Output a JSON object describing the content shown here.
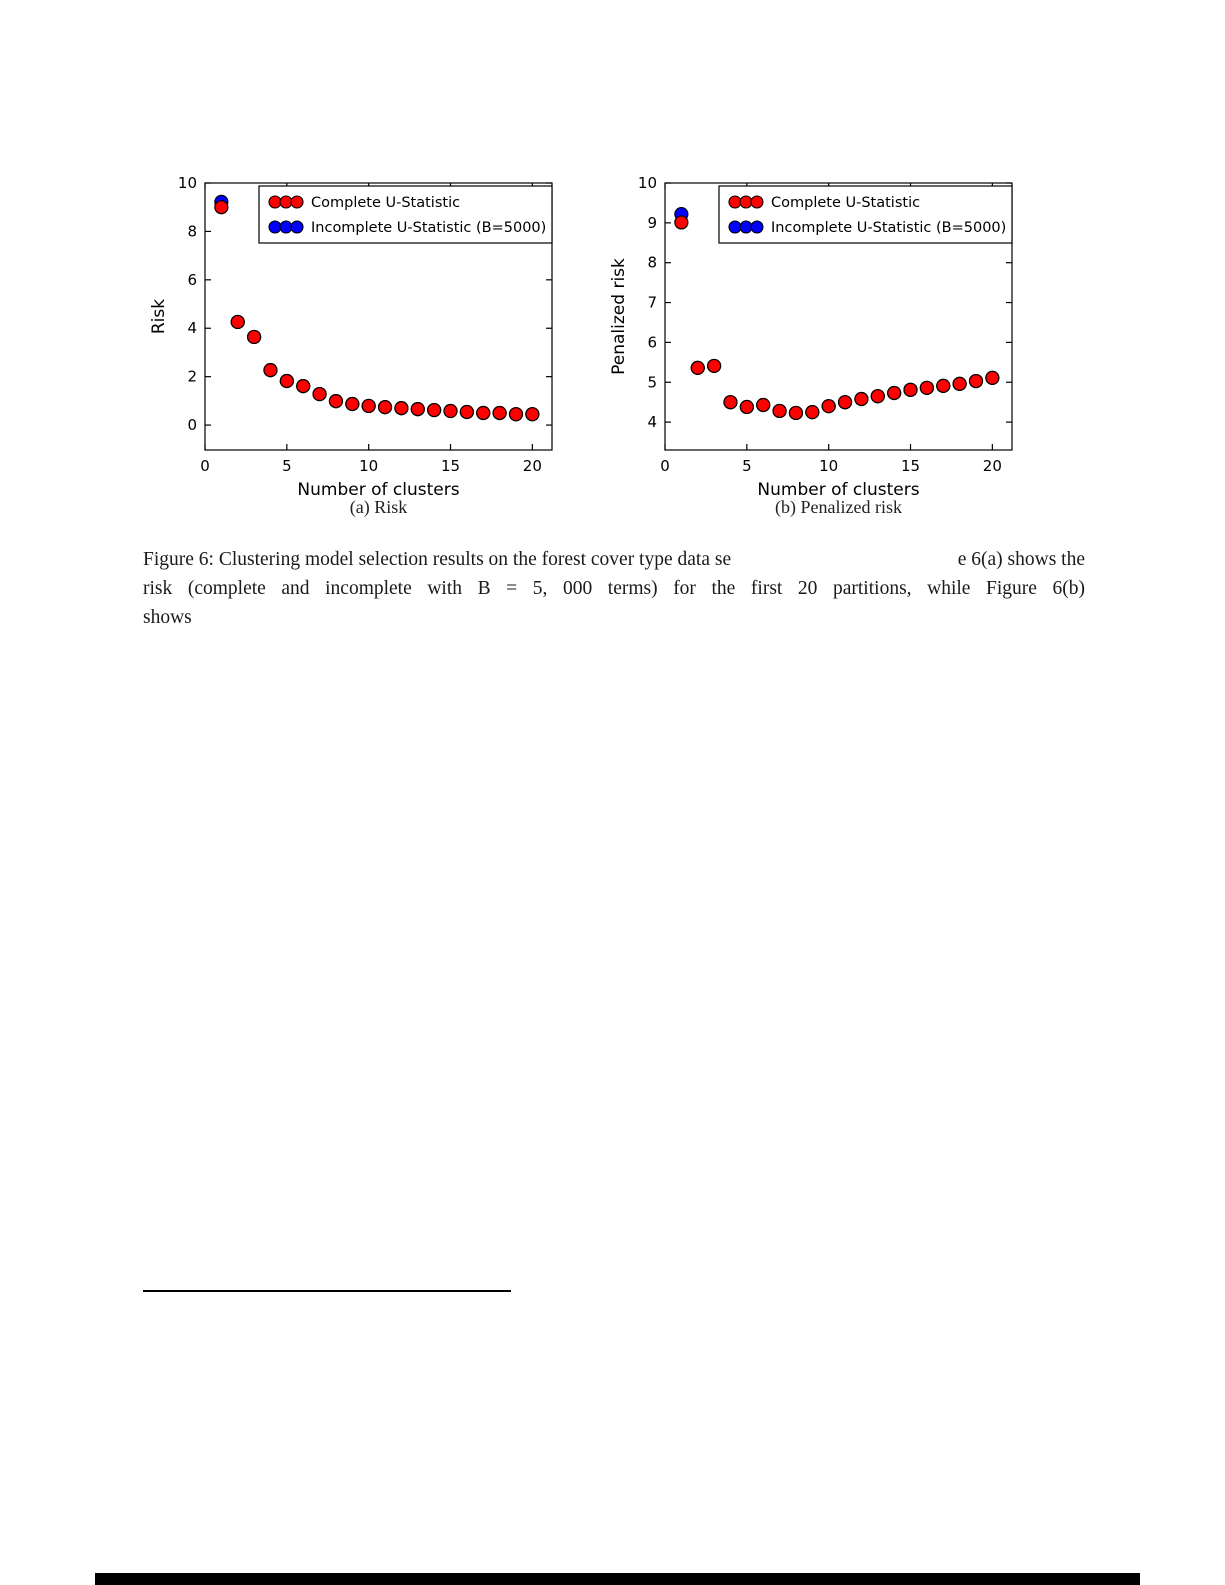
{
  "caption": {
    "line1_left": "Figure 6: Clustering model selection results on the forest cover type data se",
    "line1_right": "e 6(a) shows the",
    "line2": "risk (complete and incomplete with B = 5, 000 terms) for the first 20 partitions, while Figure 6(b)",
    "line3": "shows"
  },
  "subcaptions": {
    "a": "(a) Risk",
    "b": "(b) Penalized risk"
  },
  "colors": {
    "complete": "#ff0000",
    "incomplete": "#0000ff",
    "marker_edge": "#000000"
  },
  "chart_data": [
    {
      "type": "scatter",
      "title": "",
      "xlabel": "Number of clusters",
      "ylabel": "Risk",
      "xlim": [
        0,
        21.2
      ],
      "ylim": [
        -1.03,
        10
      ],
      "xticks": [
        0,
        5,
        10,
        15,
        20
      ],
      "yticks": [
        0,
        2,
        4,
        6,
        8,
        10
      ],
      "grid": false,
      "legend_position": "upper right inside",
      "x": [
        1,
        2,
        3,
        4,
        5,
        6,
        7,
        8,
        9,
        10,
        11,
        12,
        13,
        14,
        15,
        16,
        17,
        18,
        19,
        20
      ],
      "series": [
        {
          "name": "Complete U-Statistic",
          "color": "#ff0000",
          "values": [
            9.0,
            4.26,
            3.64,
            2.27,
            1.82,
            1.61,
            1.28,
            0.99,
            0.87,
            0.79,
            0.74,
            0.7,
            0.66,
            0.62,
            0.58,
            0.54,
            0.5,
            0.5,
            0.45,
            0.45
          ]
        },
        {
          "name": "Incomplete U-Statistic (B=5000)",
          "color": "#0000ff",
          "values": [
            9.22,
            4.26,
            3.64,
            2.27,
            1.82,
            1.61,
            1.28,
            0.99,
            0.87,
            0.79,
            0.74,
            0.7,
            0.66,
            0.62,
            0.58,
            0.54,
            0.5,
            0.5,
            0.45,
            0.45
          ]
        }
      ]
    },
    {
      "type": "scatter",
      "title": "",
      "xlabel": "Number of clusters",
      "ylabel": "Penalized risk",
      "xlim": [
        0,
        21.2
      ],
      "ylim": [
        3.3,
        10
      ],
      "xticks": [
        0,
        5,
        10,
        15,
        20
      ],
      "yticks": [
        4,
        5,
        6,
        7,
        8,
        9,
        10
      ],
      "grid": false,
      "legend_position": "upper right inside",
      "x": [
        1,
        2,
        3,
        4,
        5,
        6,
        7,
        8,
        9,
        10,
        11,
        12,
        13,
        14,
        15,
        16,
        17,
        18,
        19,
        20
      ],
      "series": [
        {
          "name": "Complete U-Statistic",
          "color": "#ff0000",
          "values": [
            9.01,
            5.36,
            5.41,
            4.5,
            4.38,
            4.43,
            4.28,
            4.23,
            4.25,
            4.4,
            4.5,
            4.58,
            4.65,
            4.73,
            4.81,
            4.86,
            4.91,
            4.96,
            5.03,
            5.11
          ]
        },
        {
          "name": "Incomplete U-Statistic (B=5000)",
          "color": "#0000ff",
          "values": [
            9.22,
            5.36,
            5.41,
            4.5,
            4.38,
            4.43,
            4.28,
            4.23,
            4.25,
            4.4,
            4.5,
            4.58,
            4.65,
            4.73,
            4.81,
            4.86,
            4.91,
            4.96,
            5.03,
            5.11
          ]
        }
      ]
    }
  ]
}
